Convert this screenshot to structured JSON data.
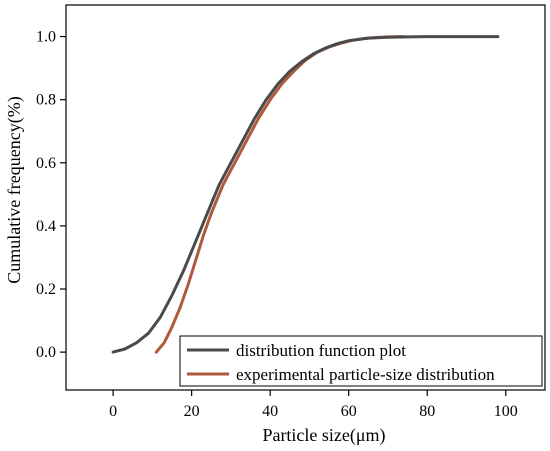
{
  "chart_data": {
    "type": "line",
    "title": "",
    "xlabel": "Particle size(μm)",
    "ylabel": "Cumulative frequency(%)",
    "xlim": [
      -12,
      110
    ],
    "ylim": [
      -0.12,
      1.1
    ],
    "xticks": [
      0,
      20,
      40,
      60,
      80,
      100
    ],
    "xtick_labels": [
      "0",
      "20",
      "40",
      "60",
      "80",
      "100"
    ],
    "yticks": [
      0.0,
      0.2,
      0.4,
      0.6,
      0.8,
      1.0
    ],
    "ytick_labels": [
      "0.0",
      "0.2",
      "0.4",
      "0.6",
      "0.8",
      "1.0"
    ],
    "grid": false,
    "legend_position": "bottom-right",
    "series": [
      {
        "name": "distribution function plot",
        "color": "#4a4a4a",
        "x": [
          0,
          3,
          6,
          9,
          12,
          15,
          18,
          21,
          24,
          27,
          30,
          33,
          36,
          39,
          42,
          45,
          48,
          51,
          54,
          57,
          60,
          65,
          70,
          75,
          80,
          85,
          90,
          95,
          98
        ],
        "y": [
          0.0,
          0.01,
          0.03,
          0.06,
          0.11,
          0.18,
          0.26,
          0.35,
          0.44,
          0.53,
          0.6,
          0.67,
          0.74,
          0.8,
          0.85,
          0.89,
          0.92,
          0.945,
          0.963,
          0.977,
          0.987,
          0.995,
          0.998,
          0.999,
          1.0,
          1.0,
          1.0,
          1.0,
          1.0
        ]
      },
      {
        "name": "experimental particle-size distribution",
        "color": "#b05a3c",
        "x": [
          11,
          13,
          15,
          17,
          19,
          21,
          23,
          25,
          28,
          31,
          34,
          37,
          40,
          43,
          46,
          49,
          52,
          55,
          58,
          61,
          64,
          67,
          70,
          74
        ],
        "y": [
          0.0,
          0.03,
          0.08,
          0.14,
          0.21,
          0.29,
          0.37,
          0.44,
          0.53,
          0.6,
          0.67,
          0.74,
          0.8,
          0.85,
          0.89,
          0.925,
          0.95,
          0.967,
          0.979,
          0.988,
          0.994,
          0.997,
          0.999,
          1.0
        ]
      }
    ]
  }
}
